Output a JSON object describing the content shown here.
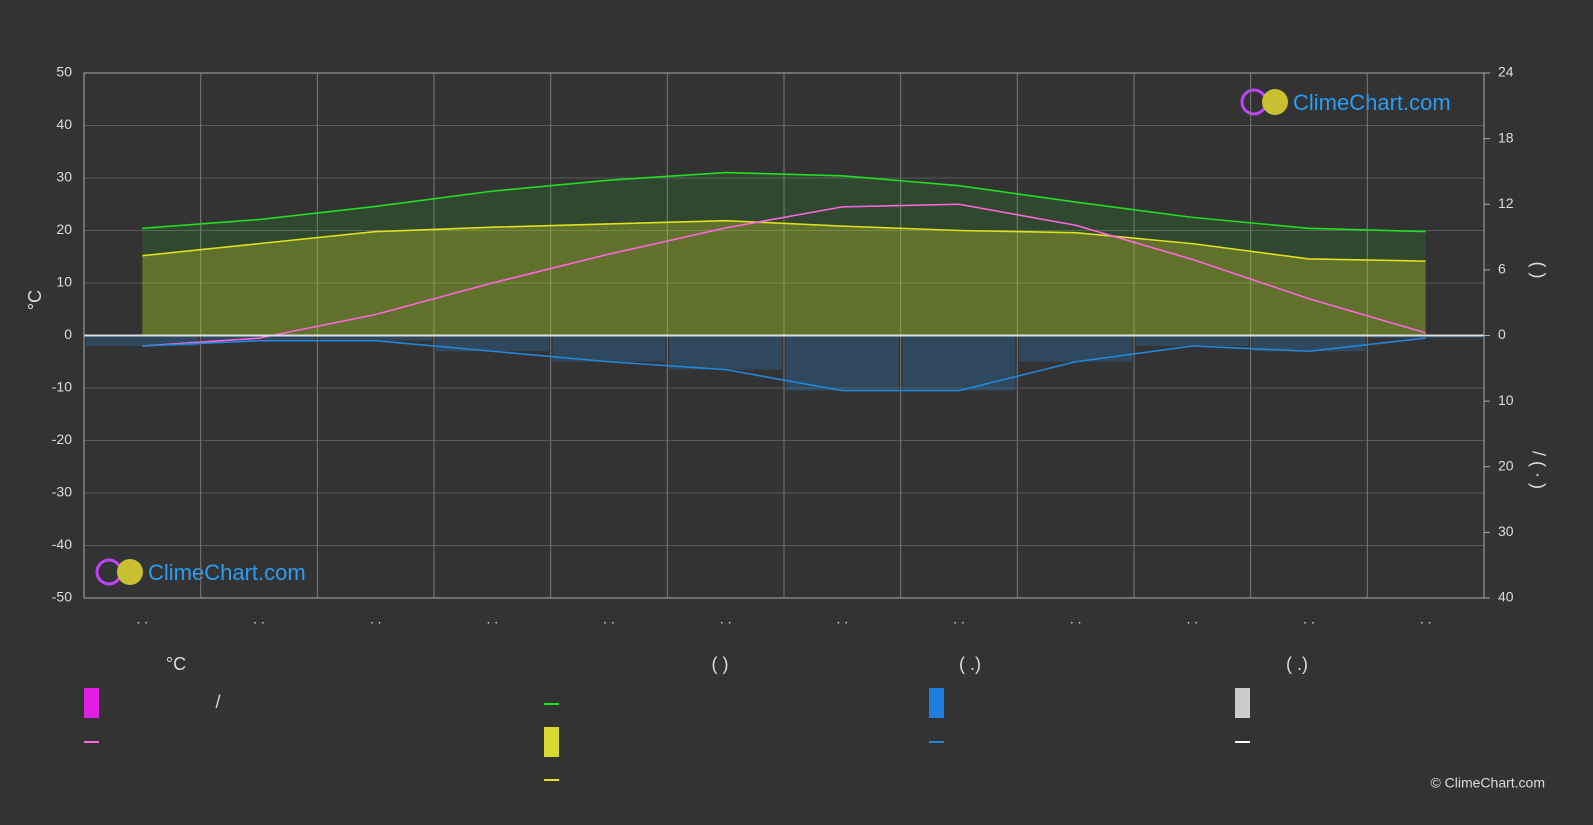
{
  "chart_data": {
    "type": "line",
    "categories": [
      ". .",
      ". .",
      ". .",
      ". .",
      ". .",
      ". .",
      ". .",
      ". .",
      ". .",
      ". .",
      ". .",
      ". ."
    ],
    "ylabel": "°C",
    "ylim": [
      -50,
      50
    ],
    "yticks": [
      -50,
      -40,
      -30,
      -20,
      -10,
      0,
      10,
      20,
      30,
      40,
      50
    ],
    "y2label": "(      )",
    "y2lim": [
      0,
      24
    ],
    "y2ticks": [
      0,
      6,
      12,
      18,
      24
    ],
    "y3label": "/     ( · )",
    "y3lim": [
      0,
      40
    ],
    "y3ticks": [
      10,
      20,
      30,
      40
    ],
    "grid": true,
    "series": [
      {
        "color": "#22dd22",
        "axis": "y2",
        "values": [
          9.8,
          10.6,
          11.8,
          13.2,
          14.2,
          14.9,
          14.6,
          13.7,
          12.2,
          10.8,
          9.8,
          9.5
        ]
      },
      {
        "color": "#e0e020",
        "axis": "y2",
        "values": [
          7.3,
          8.4,
          9.5,
          9.9,
          10.2,
          10.5,
          10.0,
          9.6,
          9.4,
          8.4,
          7.0,
          6.8
        ]
      },
      {
        "color": "#ff66dd",
        "axis": "y",
        "values": [
          -2,
          -0.5,
          4,
          10,
          15.5,
          20.5,
          24.5,
          25,
          21,
          14.5,
          7,
          0.5
        ]
      },
      {
        "color": "#2288dd",
        "axis": "y3",
        "values": [
          1.6,
          0.8,
          0.8,
          2.4,
          4,
          5.2,
          8.4,
          8.4,
          4,
          1.6,
          2.4,
          0.4
        ]
      }
    ],
    "legend": {
      "headers": [
        "°C",
        "(          )",
        "(   .)",
        "(   .)"
      ],
      "note": "/"
    },
    "watermark": "ClimeChart.com",
    "copyright": "© ClimeChart.com"
  }
}
